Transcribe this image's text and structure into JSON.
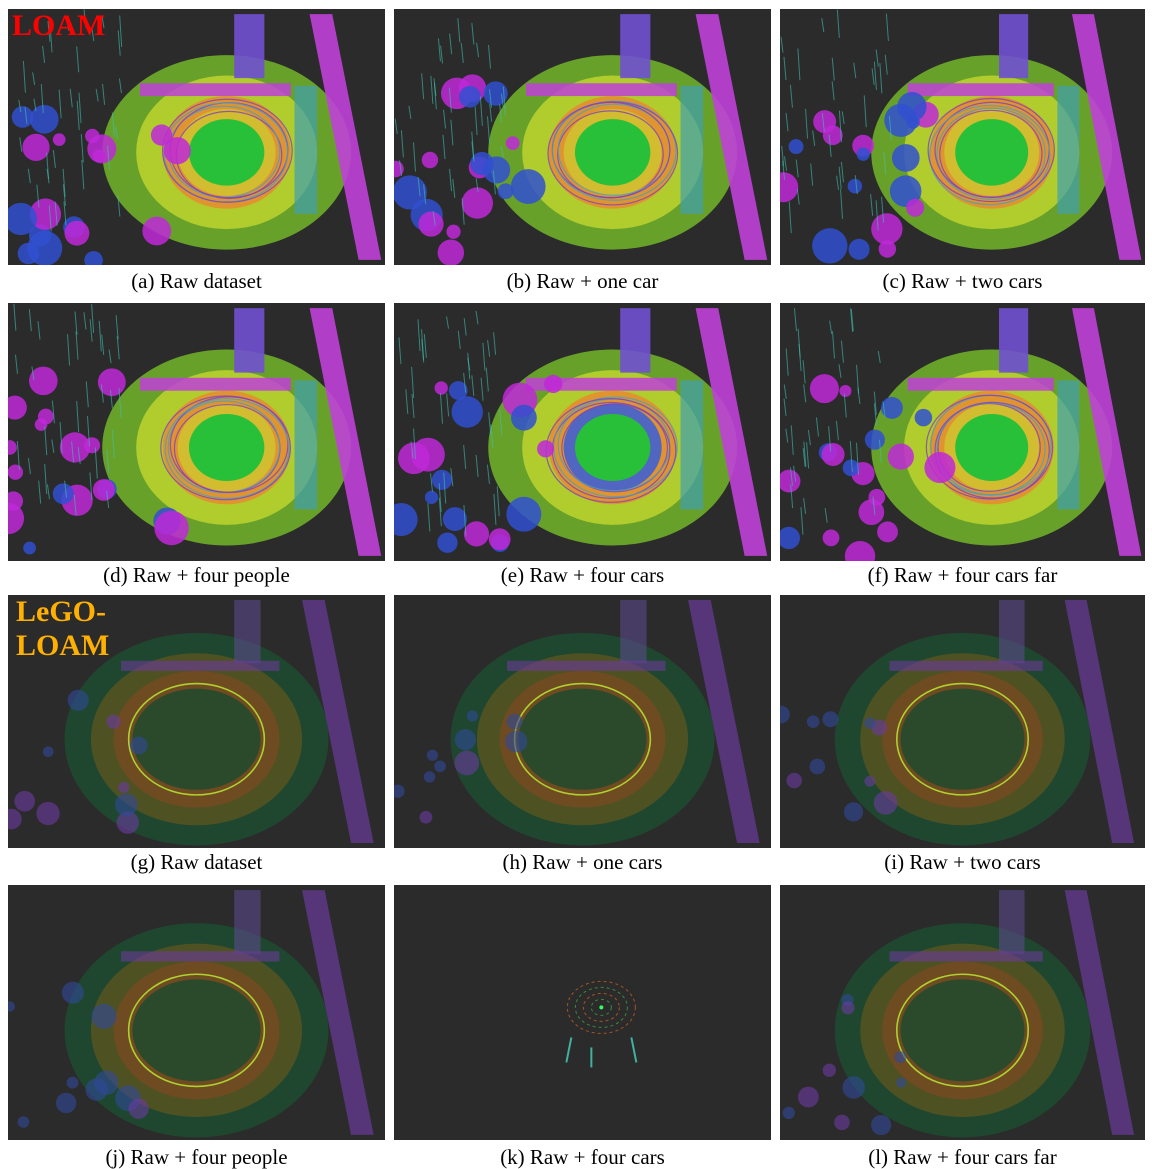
{
  "labels": {
    "loam": "LOAM",
    "lego": "LeGO-\nLOAM"
  },
  "colors": {
    "loam_label": "#ff0000",
    "lego_label": "#ffb000",
    "panel_bg": "#2b2b2b"
  },
  "panels": [
    {
      "id": "a",
      "caption": "(a) Raw dataset",
      "style": "loam"
    },
    {
      "id": "b",
      "caption": "(b) Raw + one car",
      "style": "loam"
    },
    {
      "id": "c",
      "caption": "(c) Raw + two cars",
      "style": "loam"
    },
    {
      "id": "d",
      "caption": "(d) Raw + four people",
      "style": "loam"
    },
    {
      "id": "e",
      "caption": "(e) Raw + four cars",
      "style": "loam-e"
    },
    {
      "id": "f",
      "caption": "(f) Raw + four cars far",
      "style": "loam"
    },
    {
      "id": "g",
      "caption": "(g) Raw dataset",
      "style": "lego"
    },
    {
      "id": "h",
      "caption": "(h) Raw + one cars",
      "style": "lego"
    },
    {
      "id": "i",
      "caption": "(i) Raw + two cars",
      "style": "lego"
    },
    {
      "id": "j",
      "caption": "(j) Raw + four people",
      "style": "lego"
    },
    {
      "id": "k",
      "caption": "(k) Raw + four cars",
      "style": "lego-k"
    },
    {
      "id": "l",
      "caption": "(l) Raw + four cars far",
      "style": "lego"
    }
  ]
}
